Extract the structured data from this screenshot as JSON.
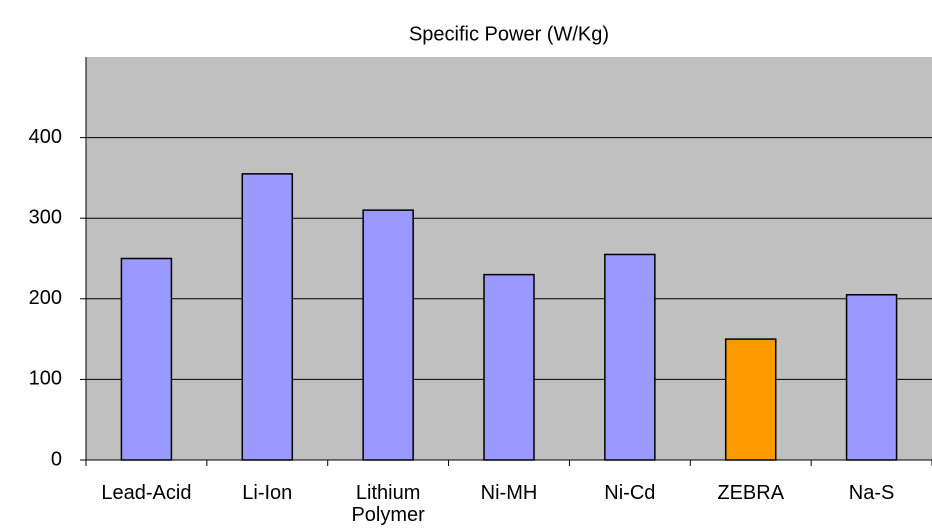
{
  "chart_data": {
    "type": "bar",
    "title": "Specific Power (W/Kg)",
    "categories": [
      "Lead-Acid",
      "Li-Ion",
      "Lithium Polymer",
      "Ni-MH",
      "Ni-Cd",
      "ZEBRA",
      "Na-S"
    ],
    "values": [
      250,
      355,
      310,
      230,
      255,
      150,
      205
    ],
    "colors": [
      "#9999ff",
      "#9999ff",
      "#9999ff",
      "#9999ff",
      "#9999ff",
      "#ff9900",
      "#9999ff"
    ],
    "ylim": [
      0,
      500
    ],
    "yticks": [
      0,
      100,
      200,
      300,
      400
    ],
    "grid": true
  }
}
